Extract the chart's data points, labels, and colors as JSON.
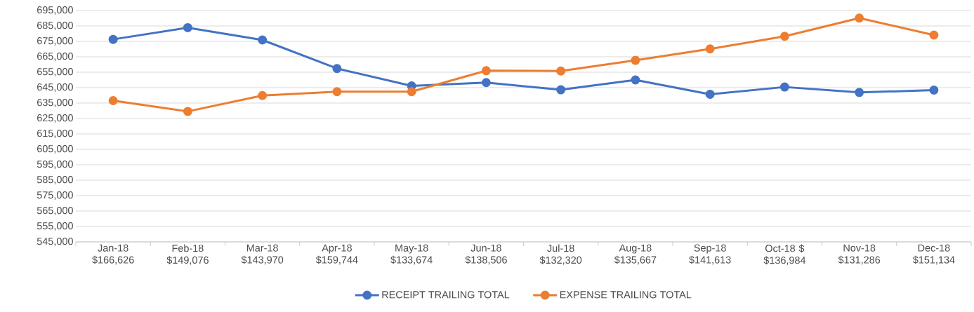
{
  "chart_data": {
    "type": "line",
    "categories": [
      "Jan-18 $166,626",
      "Feb-18 $149,076",
      "Mar-18 $143,970",
      "Apr-18 $159,744",
      "May-18 $133,674",
      "Jun-18 $138,506",
      "Jul-18 $132,320",
      "Aug-18 $135,667",
      "Sep-18 $141,613",
      "Oct-18 $ $136,984",
      "Nov-18 $131,286",
      "Dec-18 $151,134"
    ],
    "series": [
      {
        "name": "RECEIPT TRAILING TOTAL",
        "color": "#4472c4",
        "values": [
          676300,
          683900,
          675900,
          657400,
          646100,
          648300,
          643600,
          650000,
          640700,
          645400,
          641900,
          643400
        ]
      },
      {
        "name": "EXPENSE TRAILING TOTAL",
        "color": "#ed7d31",
        "values": [
          636600,
          629600,
          639900,
          642400,
          642400,
          656000,
          655800,
          662700,
          670100,
          678300,
          690100,
          679100
        ]
      }
    ],
    "ylim": [
      545000,
      695000
    ],
    "yticks": [
      {
        "value": 545000,
        "label": "545,000"
      },
      {
        "value": 555000,
        "label": "555,000"
      },
      {
        "value": 565000,
        "label": "565,000"
      },
      {
        "value": 575000,
        "label": "575,000"
      },
      {
        "value": 585000,
        "label": "585,000"
      },
      {
        "value": 595000,
        "label": "595,000"
      },
      {
        "value": 605000,
        "label": "605,000"
      },
      {
        "value": 615000,
        "label": "615,000"
      },
      {
        "value": 625000,
        "label": "625,000"
      },
      {
        "value": 635000,
        "label": "635,000"
      },
      {
        "value": 645000,
        "label": "645,000"
      },
      {
        "value": 655000,
        "label": "655,000"
      },
      {
        "value": 665000,
        "label": "665,000"
      },
      {
        "value": 675000,
        "label": "675,000"
      },
      {
        "value": 685000,
        "label": "685,000"
      },
      {
        "value": 695000,
        "label": "695,000"
      }
    ],
    "grid": "y",
    "legend": "bottom",
    "marker": "circle"
  }
}
